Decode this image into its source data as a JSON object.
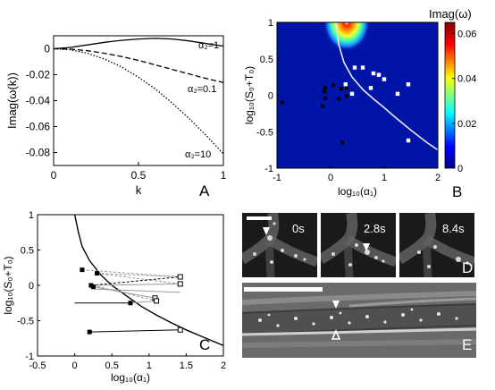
{
  "chart_data": [
    {
      "id": "A",
      "type": "line",
      "xlabel": "k",
      "ylabel": "Imag(ω(k))",
      "xlim": [
        0,
        1
      ],
      "ylim": [
        -0.09,
        0.01
      ],
      "xticks": [
        "0",
        "0.5",
        "1"
      ],
      "yticks": [
        "0",
        "-0.02",
        "-0.04",
        "-0.06",
        "-0.08"
      ],
      "series": [
        {
          "name": "α₂=1",
          "style": "solid",
          "x": [
            0,
            0.1,
            0.2,
            0.3,
            0.4,
            0.5,
            0.6,
            0.7,
            0.8,
            0.9,
            1.0
          ],
          "y": [
            0,
            0.001,
            0.003,
            0.005,
            0.0065,
            0.0075,
            0.008,
            0.0075,
            0.006,
            0.004,
            0.002
          ]
        },
        {
          "name": "α₂=0.1",
          "style": "dashed",
          "x": [
            0,
            0.1,
            0.2,
            0.3,
            0.4,
            0.5,
            0.6,
            0.7,
            0.8,
            0.9,
            1.0
          ],
          "y": [
            0,
            -0.0003,
            -0.0015,
            -0.0035,
            -0.006,
            -0.009,
            -0.0125,
            -0.016,
            -0.0195,
            -0.023,
            -0.026
          ]
        },
        {
          "name": "α₂=10",
          "style": "dotted",
          "x": [
            0,
            0.1,
            0.2,
            0.3,
            0.4,
            0.5,
            0.6,
            0.7,
            0.8,
            0.9,
            1.0
          ],
          "y": [
            0,
            -0.0008,
            -0.0035,
            -0.008,
            -0.014,
            -0.022,
            -0.031,
            -0.042,
            -0.054,
            -0.067,
            -0.081
          ]
        }
      ],
      "labels": [
        "α₂=1",
        "α₂=0.1",
        "α₂=10"
      ],
      "letter": "A"
    },
    {
      "id": "B",
      "type": "heatmap",
      "xlabel": "log₁₀(α₁)",
      "ylabel": "log₁₀(S₀+T₀)",
      "xlim": [
        -1,
        2
      ],
      "ylim": [
        -1,
        1
      ],
      "xticks": [
        "-1",
        "0",
        "1",
        "2"
      ],
      "yticks": [
        "1",
        "0.5",
        "0",
        "-0.5",
        "-1"
      ],
      "colorbar_label": "Imag(ω)",
      "colorbar_ticks": [
        "0.06",
        "0.04",
        "0.02",
        "0"
      ],
      "colorbar_range": [
        0,
        0.065
      ],
      "boundary": {
        "x": [
          0.1,
          0.15,
          0.25,
          0.4,
          0.6,
          0.8,
          1.0,
          1.2,
          1.5,
          1.8,
          2.0
        ],
        "y": [
          1.0,
          0.7,
          0.45,
          0.25,
          0.08,
          -0.05,
          -0.17,
          -0.3,
          -0.48,
          -0.65,
          -0.75
        ]
      },
      "black_points": [
        [
          -0.9,
          -0.1
        ],
        [
          -0.15,
          -0.15
        ],
        [
          -0.12,
          0.05
        ],
        [
          -0.1,
          -0.04
        ],
        [
          -0.1,
          0.1
        ],
        [
          0.05,
          0.14
        ],
        [
          0.15,
          -0.05
        ],
        [
          0.2,
          0.09
        ],
        [
          0.3,
          0.1
        ],
        [
          0.22,
          -0.65
        ],
        [
          0.3,
          -0.01
        ]
      ],
      "white_points": [
        [
          0.4,
          0.02
        ],
        [
          0.45,
          0.38
        ],
        [
          0.6,
          0.38
        ],
        [
          0.75,
          0.1
        ],
        [
          0.8,
          0.3
        ],
        [
          0.9,
          0.28
        ],
        [
          1.0,
          0.22
        ],
        [
          1.45,
          0.15
        ],
        [
          1.25,
          0.02
        ],
        [
          1.45,
          -0.62
        ],
        [
          0.28,
          0.15
        ]
      ],
      "letter": "B"
    },
    {
      "id": "C",
      "type": "scatter",
      "xlabel": "log₁₀(α₁)",
      "ylabel": "log₁₀(S₀+T₀)",
      "xlim": [
        -0.5,
        2
      ],
      "ylim": [
        -1,
        1
      ],
      "xticks": [
        "-0.5",
        "0",
        "0.5",
        "1",
        "1.5",
        "2"
      ],
      "yticks": [
        "1",
        "0.5",
        "0",
        "-0.5",
        "-1"
      ],
      "boundary": {
        "x": [
          0.0,
          0.05,
          0.1,
          0.2,
          0.35,
          0.5,
          0.7,
          0.9,
          1.1,
          1.3,
          1.5,
          1.7,
          2.0
        ],
        "y": [
          1.0,
          0.75,
          0.55,
          0.35,
          0.15,
          0.0,
          -0.15,
          -0.3,
          -0.42,
          -0.53,
          -0.63,
          -0.72,
          -0.85
        ]
      },
      "segments": [
        {
          "from": [
            0.1,
            0.22
          ],
          "to": [
            1.42,
            0.12
          ],
          "style": "dashed-gray"
        },
        {
          "from": [
            0.3,
            0.17
          ],
          "to": [
            1.42,
            0.12
          ],
          "style": "dashed-gray"
        },
        {
          "from": [
            0.3,
            0.17
          ],
          "to": [
            1.42,
            0.02
          ],
          "style": "dashed-gray"
        },
        {
          "from": [
            0.22,
            0.0
          ],
          "to": [
            1.42,
            0.12
          ],
          "style": "dashed-black"
        },
        {
          "from": [
            0.22,
            0.0
          ],
          "to": [
            1.42,
            0.02
          ],
          "style": "solid-gray"
        },
        {
          "from": [
            0.25,
            -0.02
          ],
          "to": [
            1.08,
            -0.18
          ],
          "style": "solid-gray"
        },
        {
          "from": [
            0.25,
            0.0
          ],
          "to": [
            1.1,
            -0.22
          ],
          "style": "dashed-gray"
        },
        {
          "from": [
            0.22,
            -0.05
          ],
          "to": [
            1.42,
            -0.1
          ],
          "style": "solid-gray"
        },
        {
          "from": [
            0.75,
            -0.25
          ],
          "to": [
            1.1,
            -0.22
          ],
          "style": "solid-gray"
        },
        {
          "from": [
            0.0,
            -0.25
          ],
          "to": [
            0.75,
            -0.25
          ],
          "style": "solid-black"
        },
        {
          "from": [
            0.2,
            -0.66
          ],
          "to": [
            1.42,
            -0.63
          ],
          "style": "solid-black"
        }
      ],
      "black_points": [
        [
          0.1,
          0.22
        ],
        [
          0.3,
          0.17
        ],
        [
          0.22,
          0.0
        ],
        [
          0.25,
          -0.02
        ],
        [
          0.75,
          -0.25
        ],
        [
          0.2,
          -0.66
        ]
      ],
      "white_points": [
        [
          1.42,
          0.12
        ],
        [
          1.42,
          0.02
        ],
        [
          1.08,
          -0.18
        ],
        [
          1.1,
          -0.22
        ],
        [
          1.42,
          -0.63
        ]
      ],
      "letter": "C"
    }
  ],
  "panel_D": {
    "timestamps": [
      "0s",
      "2.8s",
      "8.4s"
    ],
    "letter": "D"
  },
  "panel_E": {
    "letter": "E"
  },
  "colors": {
    "boundary": "#e8e8e8",
    "heat_bg": "#0015a8"
  }
}
